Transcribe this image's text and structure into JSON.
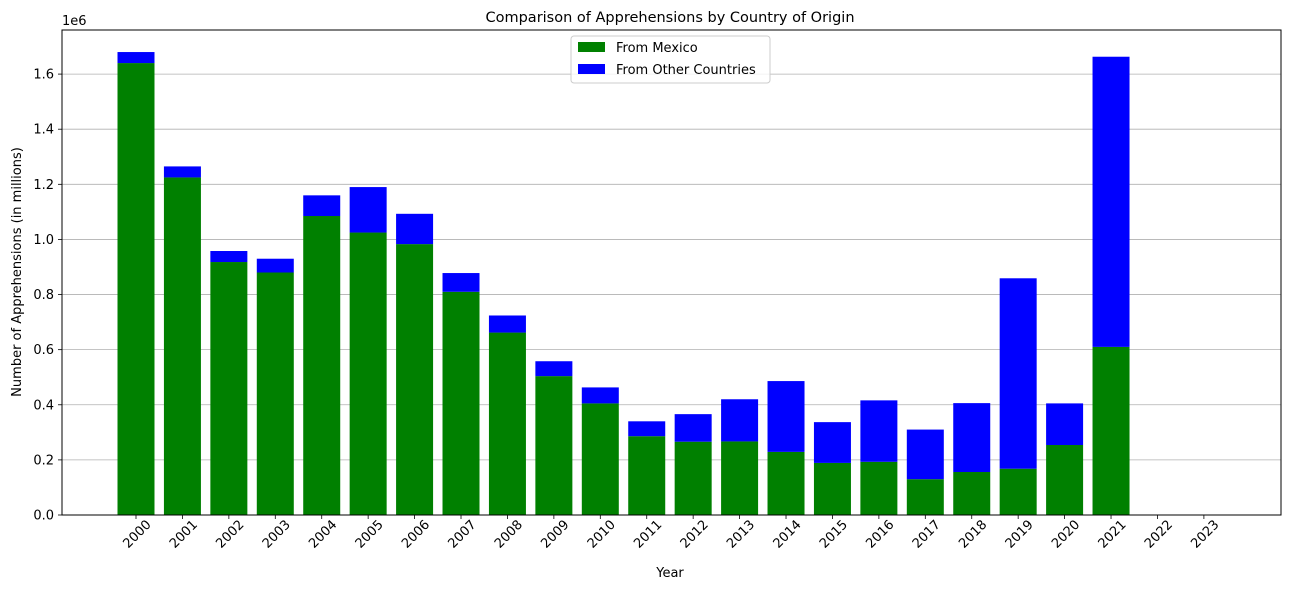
{
  "chart_data": {
    "type": "bar",
    "stacked": true,
    "title": "Comparison of Apprehensions by Country of Origin",
    "xlabel": "Year",
    "ylabel": "Number of Apprehensions (in millions)",
    "y_offset_text": "1e6",
    "ylim": [
      0,
      1760000
    ],
    "yticks": [
      0,
      200000,
      400000,
      600000,
      800000,
      1000000,
      1200000,
      1400000,
      1600000
    ],
    "ytick_labels": [
      "0.0",
      "0.2",
      "0.4",
      "0.6",
      "0.8",
      "1.0",
      "1.2",
      "1.4",
      "1.6"
    ],
    "grid": "horizontal",
    "legend_position": "top-center",
    "categories": [
      "2000",
      "2001",
      "2002",
      "2003",
      "2004",
      "2005",
      "2006",
      "2007",
      "2008",
      "2009",
      "2010",
      "2011",
      "2012",
      "2013",
      "2014",
      "2015",
      "2016",
      "2017",
      "2018",
      "2019",
      "2020",
      "2021",
      "2022",
      "2023"
    ],
    "series": [
      {
        "name": "From Mexico",
        "color": "#008000",
        "values": [
          1640000,
          1225000,
          918000,
          880000,
          1085000,
          1025000,
          983000,
          810000,
          662000,
          504000,
          405000,
          286000,
          266000,
          267000,
          229000,
          189000,
          193000,
          130000,
          156000,
          168000,
          254000,
          610000,
          0,
          0
        ]
      },
      {
        "name": "From Other Countries",
        "color": "#0000ff",
        "values": [
          40000,
          40000,
          40000,
          50000,
          75000,
          165000,
          110000,
          68000,
          62000,
          54000,
          58000,
          54000,
          100000,
          153000,
          257000,
          148000,
          223000,
          180000,
          250000,
          691000,
          151000,
          1053000,
          0,
          0
        ]
      }
    ]
  }
}
